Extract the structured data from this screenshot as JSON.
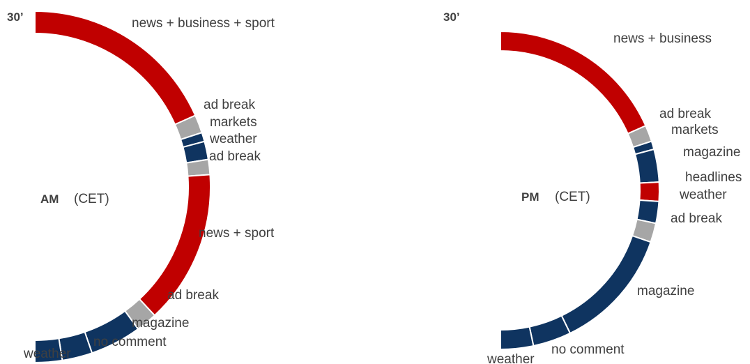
{
  "colors": {
    "news": "#C00000",
    "ad": "#A6A6A6",
    "program": "#0F3460",
    "separator": "#FFFFFF"
  },
  "am": {
    "marker": "30’",
    "title": "AM",
    "subtitle": "(CET)",
    "segments": [
      {
        "label": "news + business + sport",
        "kind": "news"
      },
      {
        "label": "ad break",
        "kind": "ad"
      },
      {
        "label": "markets",
        "kind": "program"
      },
      {
        "label": "weather",
        "kind": "program"
      },
      {
        "label": "ad break",
        "kind": "ad"
      },
      {
        "label": "news + sport",
        "kind": "news"
      },
      {
        "label": "ad break",
        "kind": "ad"
      },
      {
        "label": "magazine",
        "kind": "program"
      },
      {
        "label": "no comment",
        "kind": "program"
      },
      {
        "label": "weather",
        "kind": "program"
      }
    ]
  },
  "pm": {
    "marker": "30’",
    "title": "PM",
    "subtitle": "(CET)",
    "segments": [
      {
        "label": "news + business",
        "kind": "news"
      },
      {
        "label": "ad break",
        "kind": "ad"
      },
      {
        "label": "markets",
        "kind": "program"
      },
      {
        "label": "magazine",
        "kind": "program"
      },
      {
        "label": "headlines",
        "kind": "news"
      },
      {
        "label": "weather",
        "kind": "program"
      },
      {
        "label": "ad break",
        "kind": "ad"
      },
      {
        "label": "magazine",
        "kind": "program"
      },
      {
        "label": "no comment",
        "kind": "program"
      },
      {
        "label": "weather",
        "kind": "program"
      }
    ]
  }
}
